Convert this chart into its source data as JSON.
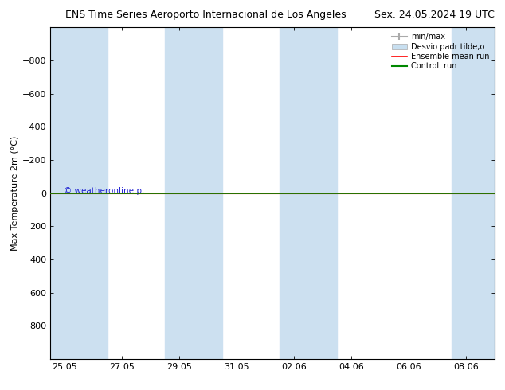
{
  "title": "ENS Time Series Aeroporto Internacional de Los Angeles",
  "title_right": "Sex. 24.05.2024 19 UTC",
  "ylabel": "Max Temperature 2m (°C)",
  "watermark": "© weatheronline.pt",
  "background_color": "#ffffff",
  "plot_bg_color": "#ffffff",
  "ylim_bottom": 1000,
  "ylim_top": -1000,
  "yticks": [
    -800,
    -600,
    -400,
    -200,
    0,
    200,
    400,
    600,
    800
  ],
  "x_ticks_labels": [
    "25.05",
    "27.05",
    "29.05",
    "31.05",
    "02.06",
    "04.06",
    "06.06",
    "08.06"
  ],
  "x_ticks_pos": [
    0,
    2,
    4,
    6,
    8,
    10,
    12,
    14
  ],
  "xlim": [
    -0.5,
    15
  ],
  "shade_color": "#cce0f0",
  "shade_alpha": 1.0,
  "shaded_spans": [
    [
      -0.5,
      1.5
    ],
    [
      3.5,
      5.5
    ],
    [
      7.5,
      9.5
    ],
    [
      13.5,
      15.0
    ]
  ],
  "ensemble_mean_color": "#ff0000",
  "control_run_color": "#008800",
  "min_max_color": "#aaaaaa",
  "std_color": "#c8dff0",
  "line_y": 0,
  "font_size_title": 9,
  "font_size_ylabel": 8,
  "font_size_tick": 8,
  "font_size_legend": 7
}
